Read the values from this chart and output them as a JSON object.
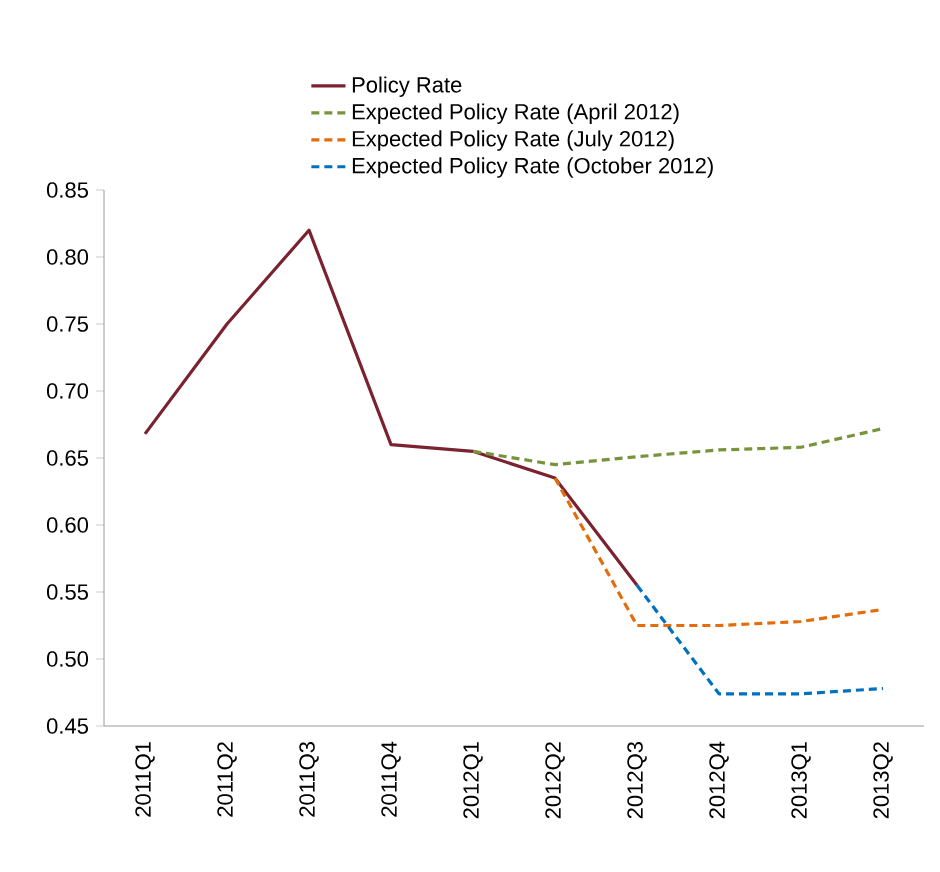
{
  "chart_data": {
    "type": "line",
    "categories": [
      "2011Q1",
      "2011Q2",
      "2011Q3",
      "2011Q4",
      "2012Q1",
      "2012Q2",
      "2012Q3",
      "2012Q4",
      "2013Q1",
      "2013Q2"
    ],
    "series": [
      {
        "name": "Policy Rate",
        "color": "#7b2230",
        "line_style": "solid",
        "values": [
          0.668,
          0.75,
          0.82,
          0.66,
          0.655,
          0.635,
          0.555,
          null,
          null,
          null
        ]
      },
      {
        "name": "Expected Policy Rate (April 2012)",
        "color": "#77933c",
        "line_style": "dashed",
        "values": [
          null,
          null,
          null,
          null,
          0.655,
          0.645,
          0.651,
          0.656,
          0.658,
          0.672
        ]
      },
      {
        "name": "Expected Policy Rate (July 2012)",
        "color": "#e46c0a",
        "line_style": "dashed",
        "values": [
          null,
          null,
          null,
          null,
          null,
          0.635,
          0.525,
          0.525,
          0.528,
          0.537
        ]
      },
      {
        "name": "Expected Policy Rate (October 2012)",
        "color": "#0070c0",
        "line_style": "dashed",
        "values": [
          null,
          null,
          null,
          null,
          null,
          null,
          0.555,
          0.474,
          0.474,
          0.478
        ]
      }
    ],
    "ylim": [
      0.45,
      0.85
    ],
    "yticks": [
      0.45,
      {
        "value": 0.5,
        "label": "0.50"
      },
      0.55,
      {
        "value": 0.6,
        "label": "0.60"
      },
      0.65,
      {
        "value": 0.7,
        "label": "0.70"
      },
      0.75,
      {
        "value": 0.8,
        "label": "0.80"
      },
      0.85
    ],
    "legend": "top",
    "grid": false,
    "marker": "none"
  }
}
